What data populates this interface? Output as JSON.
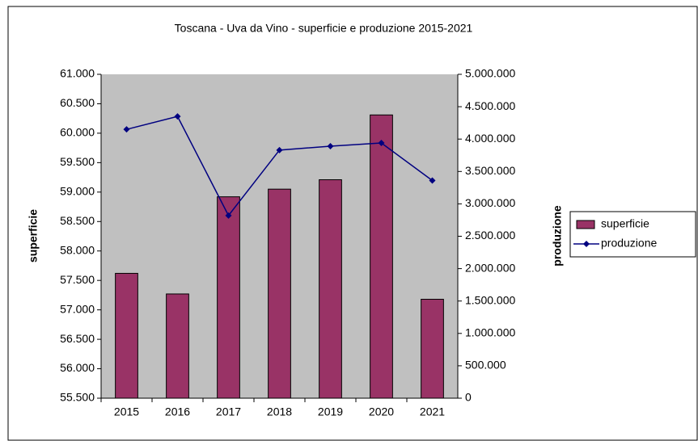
{
  "chart_data": {
    "type": "bar_line",
    "title": "Toscana - Uva da Vino - superficie e produzione 2015-2021",
    "categories": [
      "2015",
      "2016",
      "2017",
      "2018",
      "2019",
      "2020",
      "2021"
    ],
    "series": [
      {
        "name": "superficie",
        "type": "bar",
        "color": "#993366",
        "axis": "y",
        "values": [
          57620,
          57270,
          58920,
          59050,
          59210,
          60310,
          57180
        ]
      },
      {
        "name": "produzione",
        "type": "line",
        "color": "#000080",
        "axis": "y2",
        "values": [
          4150000,
          4350000,
          2820000,
          3830000,
          3890000,
          3940000,
          3360000
        ]
      }
    ],
    "ylabel": "superficie",
    "y2label": "produzione",
    "ylim": [
      55500,
      61000
    ],
    "yticks": [
      {
        "value": 55500,
        "label": "55.500"
      },
      {
        "value": 56000,
        "label": "56.000"
      },
      {
        "value": 56500,
        "label": "56.500"
      },
      {
        "value": 57000,
        "label": "57.000"
      },
      {
        "value": 57500,
        "label": "57.500"
      },
      {
        "value": 58000,
        "label": "58.000"
      },
      {
        "value": 58500,
        "label": "58.500"
      },
      {
        "value": 59000,
        "label": "59.000"
      },
      {
        "value": 59500,
        "label": "59.500"
      },
      {
        "value": 60000,
        "label": "60.000"
      },
      {
        "value": 60500,
        "label": "60.500"
      },
      {
        "value": 61000,
        "label": "61.000"
      }
    ],
    "y2lim": [
      0,
      5000000
    ],
    "y2ticks": [
      0,
      {
        "value": 500000,
        "label": "500.000"
      },
      {
        "value": 1000000,
        "label": "1.000.000"
      },
      {
        "value": 1500000,
        "label": "1.500.000"
      },
      {
        "value": 2000000,
        "label": "2.000.000"
      },
      {
        "value": 2500000,
        "label": "2.500.000"
      },
      {
        "value": 3000000,
        "label": "3.000.000"
      },
      {
        "value": 3500000,
        "label": "3.500.000"
      },
      {
        "value": 4000000,
        "label": "4.000.000"
      },
      {
        "value": 4500000,
        "label": "4.500.000"
      },
      {
        "value": 5000000,
        "label": "5.000.000"
      }
    ],
    "plot_background": "#c0c0c0",
    "legend": "right"
  }
}
